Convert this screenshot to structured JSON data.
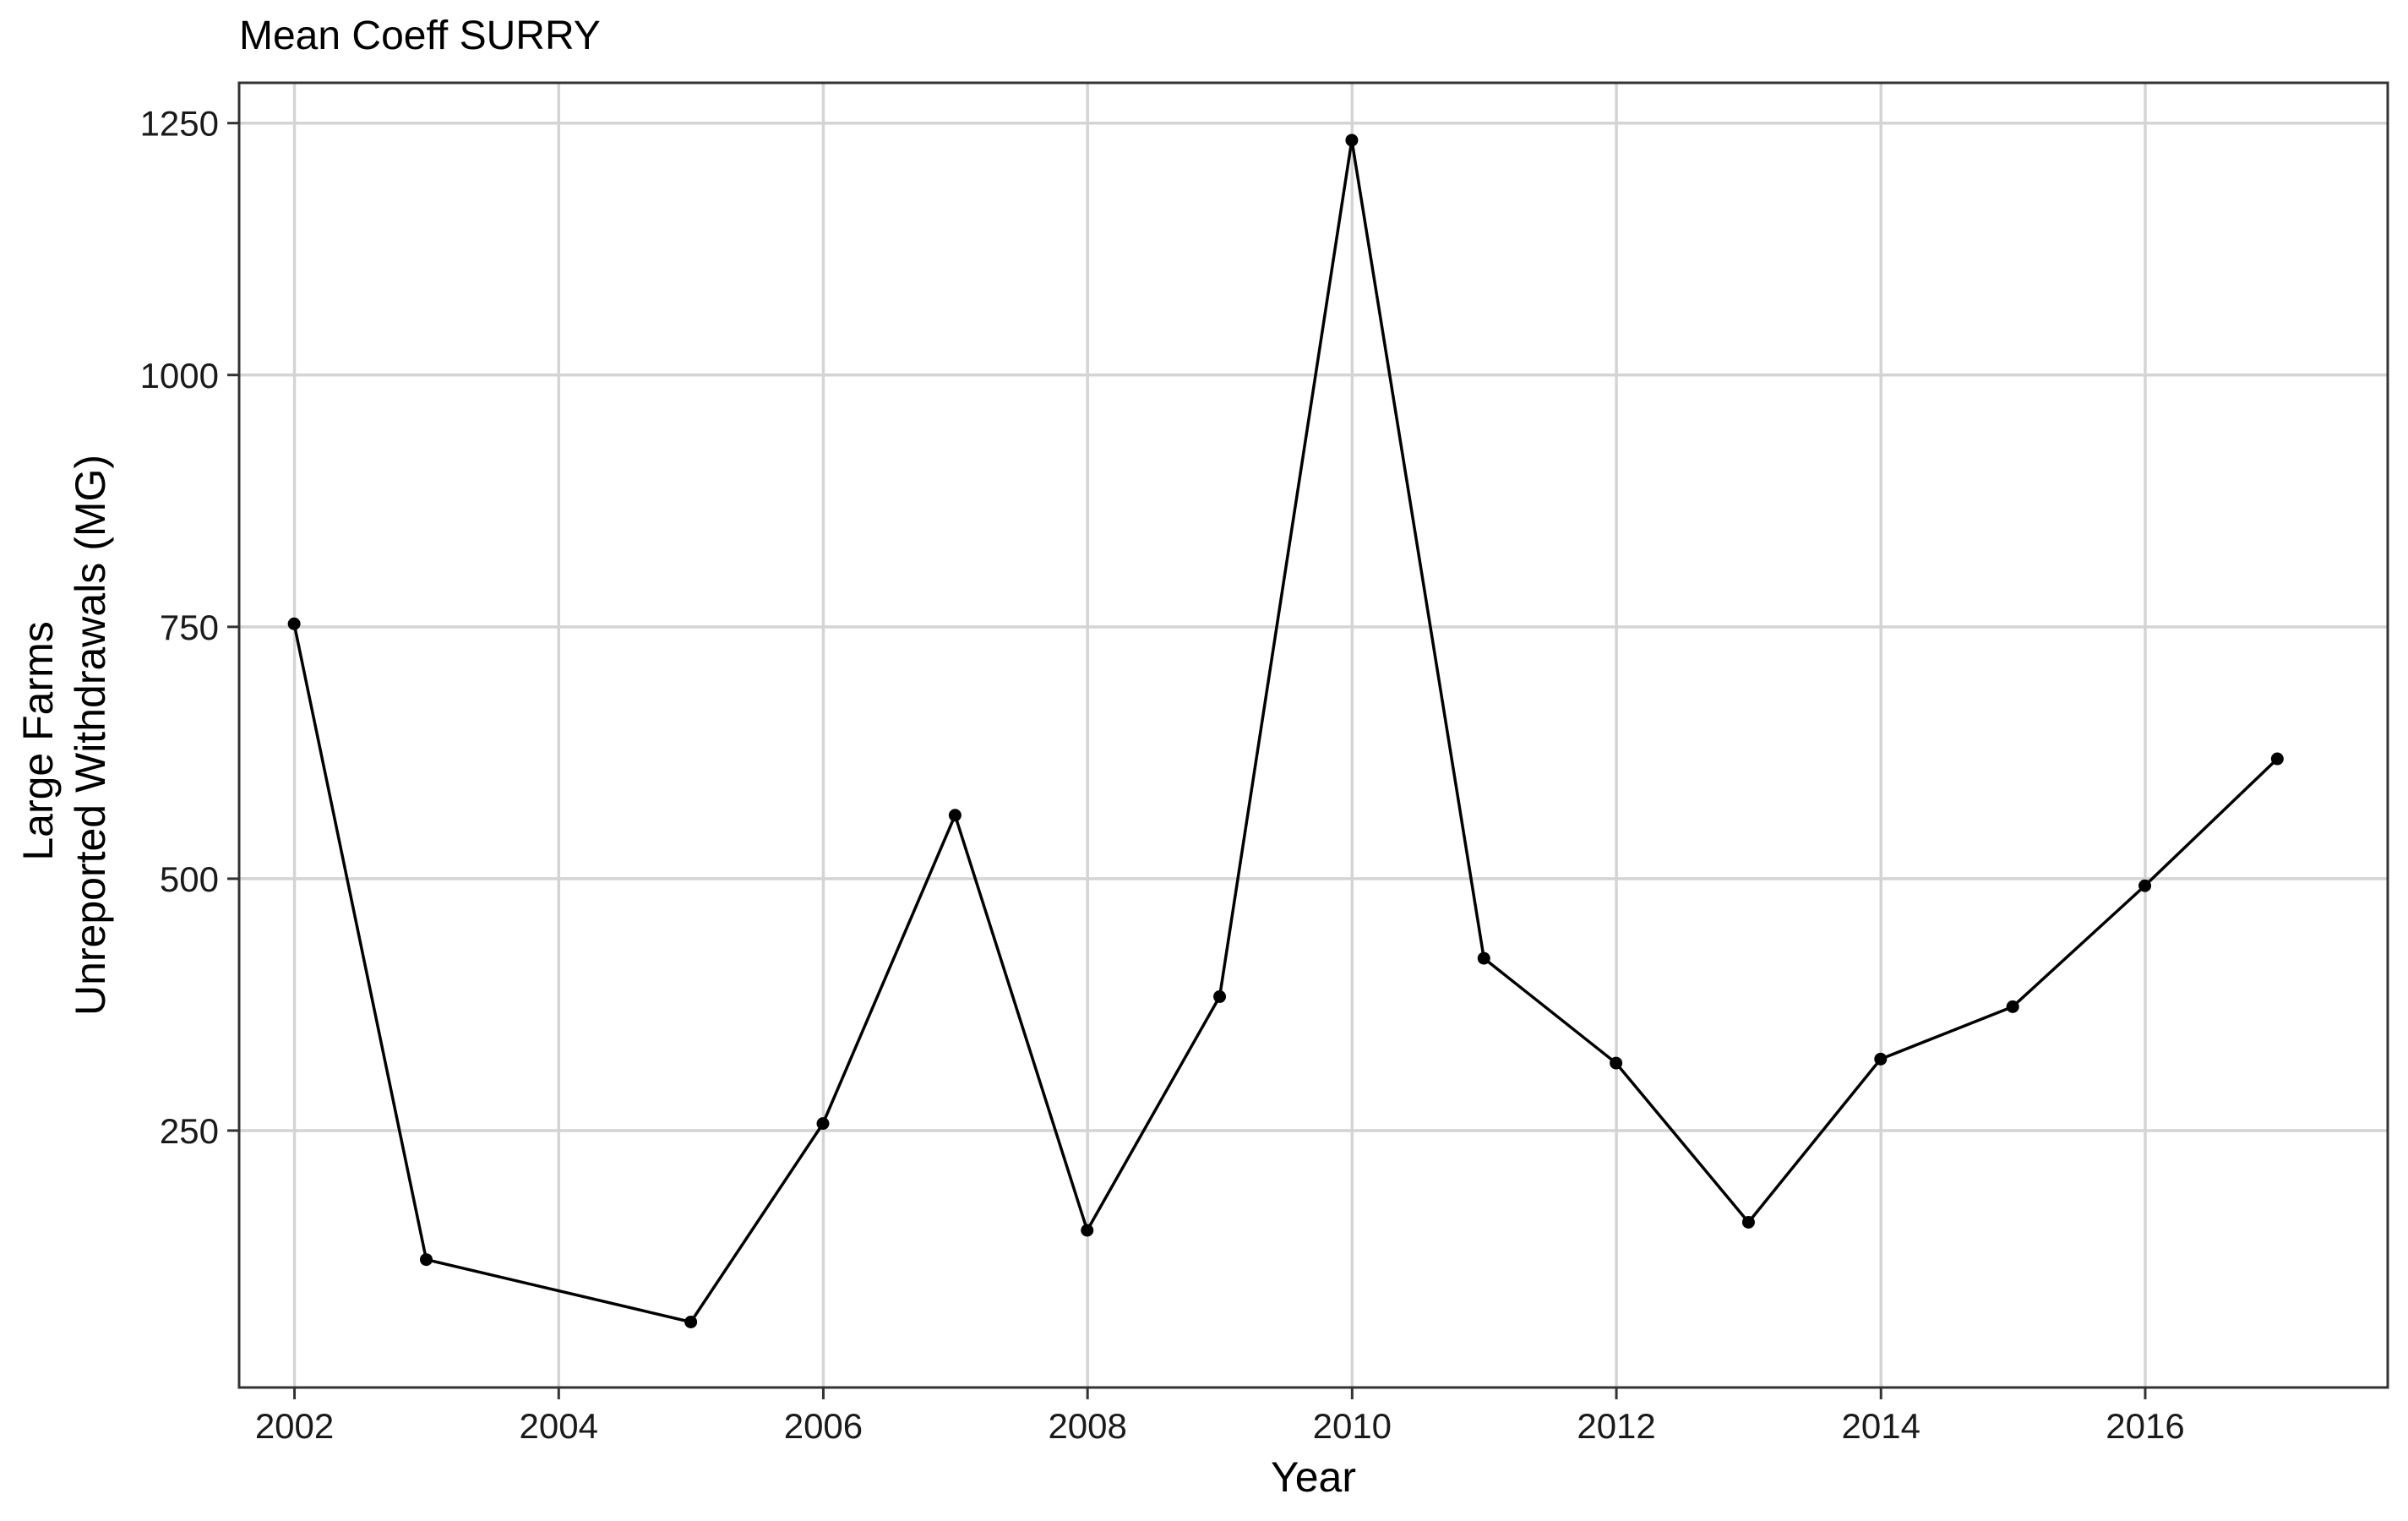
{
  "chart_data": {
    "type": "line",
    "title": "Mean Coeff SURRY",
    "xlabel": "Year",
    "ylabel_lines": [
      "Large Farms",
      "Unreported Withdrawals (MG)"
    ],
    "xlim": [
      "2001-08-01",
      "2017-11-01"
    ],
    "ylim": [
      -5,
      1290
    ],
    "x_ticks": [
      {
        "date": "2002-01-01",
        "label": "2002"
      },
      {
        "date": "2004-01-01",
        "label": "2004"
      },
      {
        "date": "2006-01-01",
        "label": "2006"
      },
      {
        "date": "2008-01-01",
        "label": "2008"
      },
      {
        "date": "2010-01-01",
        "label": "2010"
      },
      {
        "date": "2012-01-01",
        "label": "2012"
      },
      {
        "date": "2014-01-01",
        "label": "2014"
      },
      {
        "date": "2016-01-01",
        "label": "2016"
      }
    ],
    "y_ticks": [
      {
        "value": 250,
        "label": "250"
      },
      {
        "value": 500,
        "label": "500"
      },
      {
        "value": 750,
        "label": "750"
      },
      {
        "value": 1000,
        "label": "1000"
      },
      {
        "value": 1250,
        "label": "1250"
      }
    ],
    "grid": true,
    "series": [
      {
        "points": [
          {
            "x": "2001-12-31",
            "y": 753
          },
          {
            "x": "2002-12-31",
            "y": 122
          },
          {
            "x": "2004-12-31",
            "y": 60
          },
          {
            "x": "2005-12-31",
            "y": 257
          },
          {
            "x": "2006-12-31",
            "y": 563
          },
          {
            "x": "2007-12-31",
            "y": 151
          },
          {
            "x": "2008-12-31",
            "y": 383
          },
          {
            "x": "2009-12-31",
            "y": 1233
          },
          {
            "x": "2010-12-31",
            "y": 421
          },
          {
            "x": "2011-12-31",
            "y": 317
          },
          {
            "x": "2012-12-31",
            "y": 159
          },
          {
            "x": "2013-12-31",
            "y": 321
          },
          {
            "x": "2014-12-31",
            "y": 373
          },
          {
            "x": "2015-12-31",
            "y": 493
          },
          {
            "x": "2016-12-31",
            "y": 619
          }
        ]
      }
    ],
    "colors": {
      "line": "#000000",
      "grid": "#d4d4d4",
      "border": "#333333"
    }
  }
}
